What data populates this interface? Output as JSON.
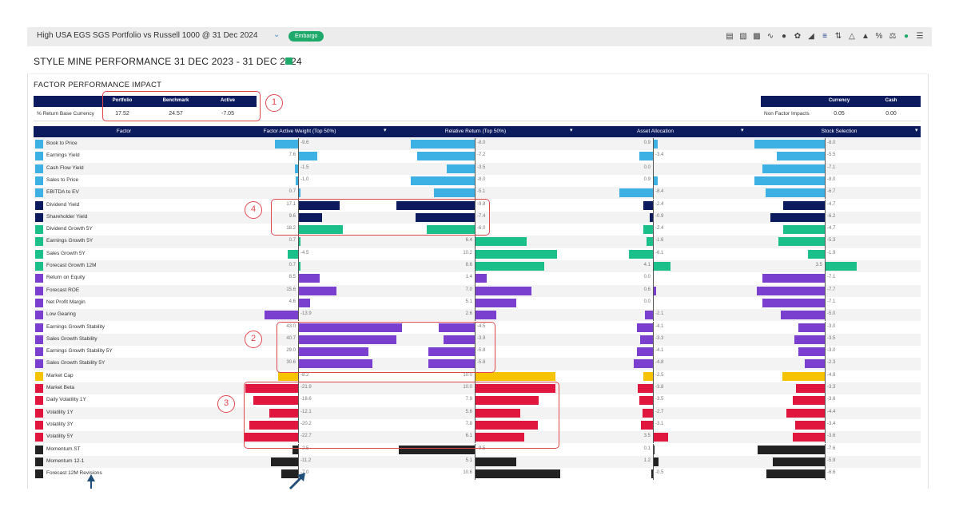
{
  "header": {
    "title": "High USA EGS SGS Portfolio vs Russell 1000 @ 31 Dec 2024",
    "badge": "Embargo",
    "icons": [
      "document-icon",
      "bar-chart-icon",
      "column-chart-icon",
      "sparkline-icon",
      "drop-icon",
      "leaf-icon",
      "area-chart-icon",
      "factor-icon",
      "sort-arrows-icon",
      "triangle-icon",
      "hierarchy-icon",
      "percent-icon",
      "scales-icon",
      "status-dot-icon",
      "menu-icon"
    ]
  },
  "page_title": "STYLE MINE PERFORMANCE 31 DEC 2023 - 31 DEC 2024",
  "section_title": "FACTOR PERFORMANCE IMPACT",
  "summary": {
    "row_label": "% Return Base Currency",
    "headers": [
      "Portfolio",
      "Benchmark",
      "Active"
    ],
    "values": [
      "17.52",
      "24.57",
      "-7.05"
    ]
  },
  "non_factor": {
    "row_label": "Non Factor Impacts",
    "headers": [
      "Currency",
      "Cash"
    ],
    "values": [
      "0.05",
      "0.00"
    ]
  },
  "table": {
    "headers": [
      "Factor",
      "Factor Active Weight (Top 50%)",
      "Relative Return (Top 50%)",
      "Asset Allocation",
      "Stock Selection"
    ],
    "rows": [
      {
        "name": "Book to Price",
        "color": "#3eb1e4",
        "w": "-9.6",
        "r": "-8.0",
        "a": "0.9",
        "s": "-8.0"
      },
      {
        "name": "Earnings Yield",
        "color": "#3eb1e4",
        "w": "7.6",
        "r": "-7.2",
        "a": "-3.4",
        "s": "-5.5"
      },
      {
        "name": "Cash Flow Yield",
        "color": "#3eb1e4",
        "w": "-1.5",
        "r": "-3.5",
        "a": "0.0",
        "s": "-7.1"
      },
      {
        "name": "Sales to Price",
        "color": "#3eb1e4",
        "w": "-1.0",
        "r": "-8.0",
        "a": "0.9",
        "s": "-8.0"
      },
      {
        "name": "EBITDA to EV",
        "color": "#3eb1e4",
        "w": "0.7",
        "r": "-5.1",
        "a": "-8.4",
        "s": "-6.7"
      },
      {
        "name": "Dividend Yield",
        "color": "#0c1a5e",
        "w": "17.1",
        "r": "-9.8",
        "a": "-2.4",
        "s": "-4.7"
      },
      {
        "name": "Shareholder Yield",
        "color": "#0c1a5e",
        "w": "9.6",
        "r": "-7.4",
        "a": "-0.9",
        "s": "-6.2"
      },
      {
        "name": "Dividend Growth 5Y",
        "color": "#1bbf8a",
        "w": "18.2",
        "r": "-6.0",
        "a": "-2.4",
        "s": "-4.7"
      },
      {
        "name": "Earnings Growth 5Y",
        "color": "#1bbf8a",
        "w": "0.7",
        "r": "6.4",
        "a": "-1.6",
        "s": "-5.3"
      },
      {
        "name": "Sales Growth 5Y",
        "color": "#1bbf8a",
        "w": "-4.5",
        "r": "10.2",
        "a": "-6.1",
        "s": "-1.9"
      },
      {
        "name": "Forecast Growth 12M",
        "color": "#1bbf8a",
        "w": "0.7",
        "r": "8.6",
        "a": "4.1",
        "s": "3.5"
      },
      {
        "name": "Return on Equity",
        "color": "#7b3fcf",
        "w": "8.5",
        "r": "1.4",
        "a": "0.0",
        "s": "-7.1"
      },
      {
        "name": "Forecast ROE",
        "color": "#7b3fcf",
        "w": "15.6",
        "r": "7.0",
        "a": "0.6",
        "s": "-7.7"
      },
      {
        "name": "Net Profit Margin",
        "color": "#7b3fcf",
        "w": "4.6",
        "r": "5.1",
        "a": "0.0",
        "s": "-7.1"
      },
      {
        "name": "Low Gearing",
        "color": "#7b3fcf",
        "w": "-13.9",
        "r": "2.6",
        "a": "-2.1",
        "s": "-5.0"
      },
      {
        "name": "Earnings Growth Stability",
        "color": "#7b3fcf",
        "w": "43.0",
        "r": "-4.5",
        "a": "-4.1",
        "s": "-3.0"
      },
      {
        "name": "Sales Growth Stability",
        "color": "#7b3fcf",
        "w": "40.7",
        "r": "-3.9",
        "a": "-3.3",
        "s": "-3.5"
      },
      {
        "name": "Earnings Growth Stability 5Y",
        "color": "#7b3fcf",
        "w": "29.0",
        "r": "-5.8",
        "a": "-4.1",
        "s": "-3.0"
      },
      {
        "name": "Sales Growth Stability 5Y",
        "color": "#7b3fcf",
        "w": "30.6",
        "r": "-5.8",
        "a": "-4.8",
        "s": "-2.3"
      },
      {
        "name": "Market Cap",
        "color": "#f5c300",
        "w": "-8.2",
        "r": "10.0",
        "a": "-2.5",
        "s": "-4.8"
      },
      {
        "name": "Market Beta",
        "color": "#e0163e",
        "w": "-21.9",
        "r": "10.0",
        "a": "-3.8",
        "s": "-3.3"
      },
      {
        "name": "Daily Volatility 1Y",
        "color": "#e0163e",
        "w": "-18.6",
        "r": "7.9",
        "a": "-3.5",
        "s": "-3.6"
      },
      {
        "name": "Volatility 1Y",
        "color": "#e0163e",
        "w": "-12.1",
        "r": "5.6",
        "a": "-2.7",
        "s": "-4.4"
      },
      {
        "name": "Volatility 3Y",
        "color": "#e0163e",
        "w": "-20.2",
        "r": "7.8",
        "a": "-3.1",
        "s": "-3.4"
      },
      {
        "name": "Volatility 5Y",
        "color": "#e0163e",
        "w": "-22.7",
        "r": "6.1",
        "a": "3.5",
        "s": "-3.6"
      },
      {
        "name": "Momentum ST",
        "color": "#222222",
        "w": "-2.5",
        "r": "-9.5",
        "a": "0.1",
        "s": "-7.6"
      },
      {
        "name": "Momentum 12-1",
        "color": "#222222",
        "w": "-11.2",
        "r": "5.1",
        "a": "1.2",
        "s": "-5.9"
      },
      {
        "name": "Forecast 12M Revisions",
        "color": "#222222",
        "w": "-7.0",
        "r": "10.6",
        "a": "-0.5",
        "s": "-6.6"
      }
    ]
  },
  "callouts": [
    "1",
    "2",
    "3",
    "4"
  ]
}
